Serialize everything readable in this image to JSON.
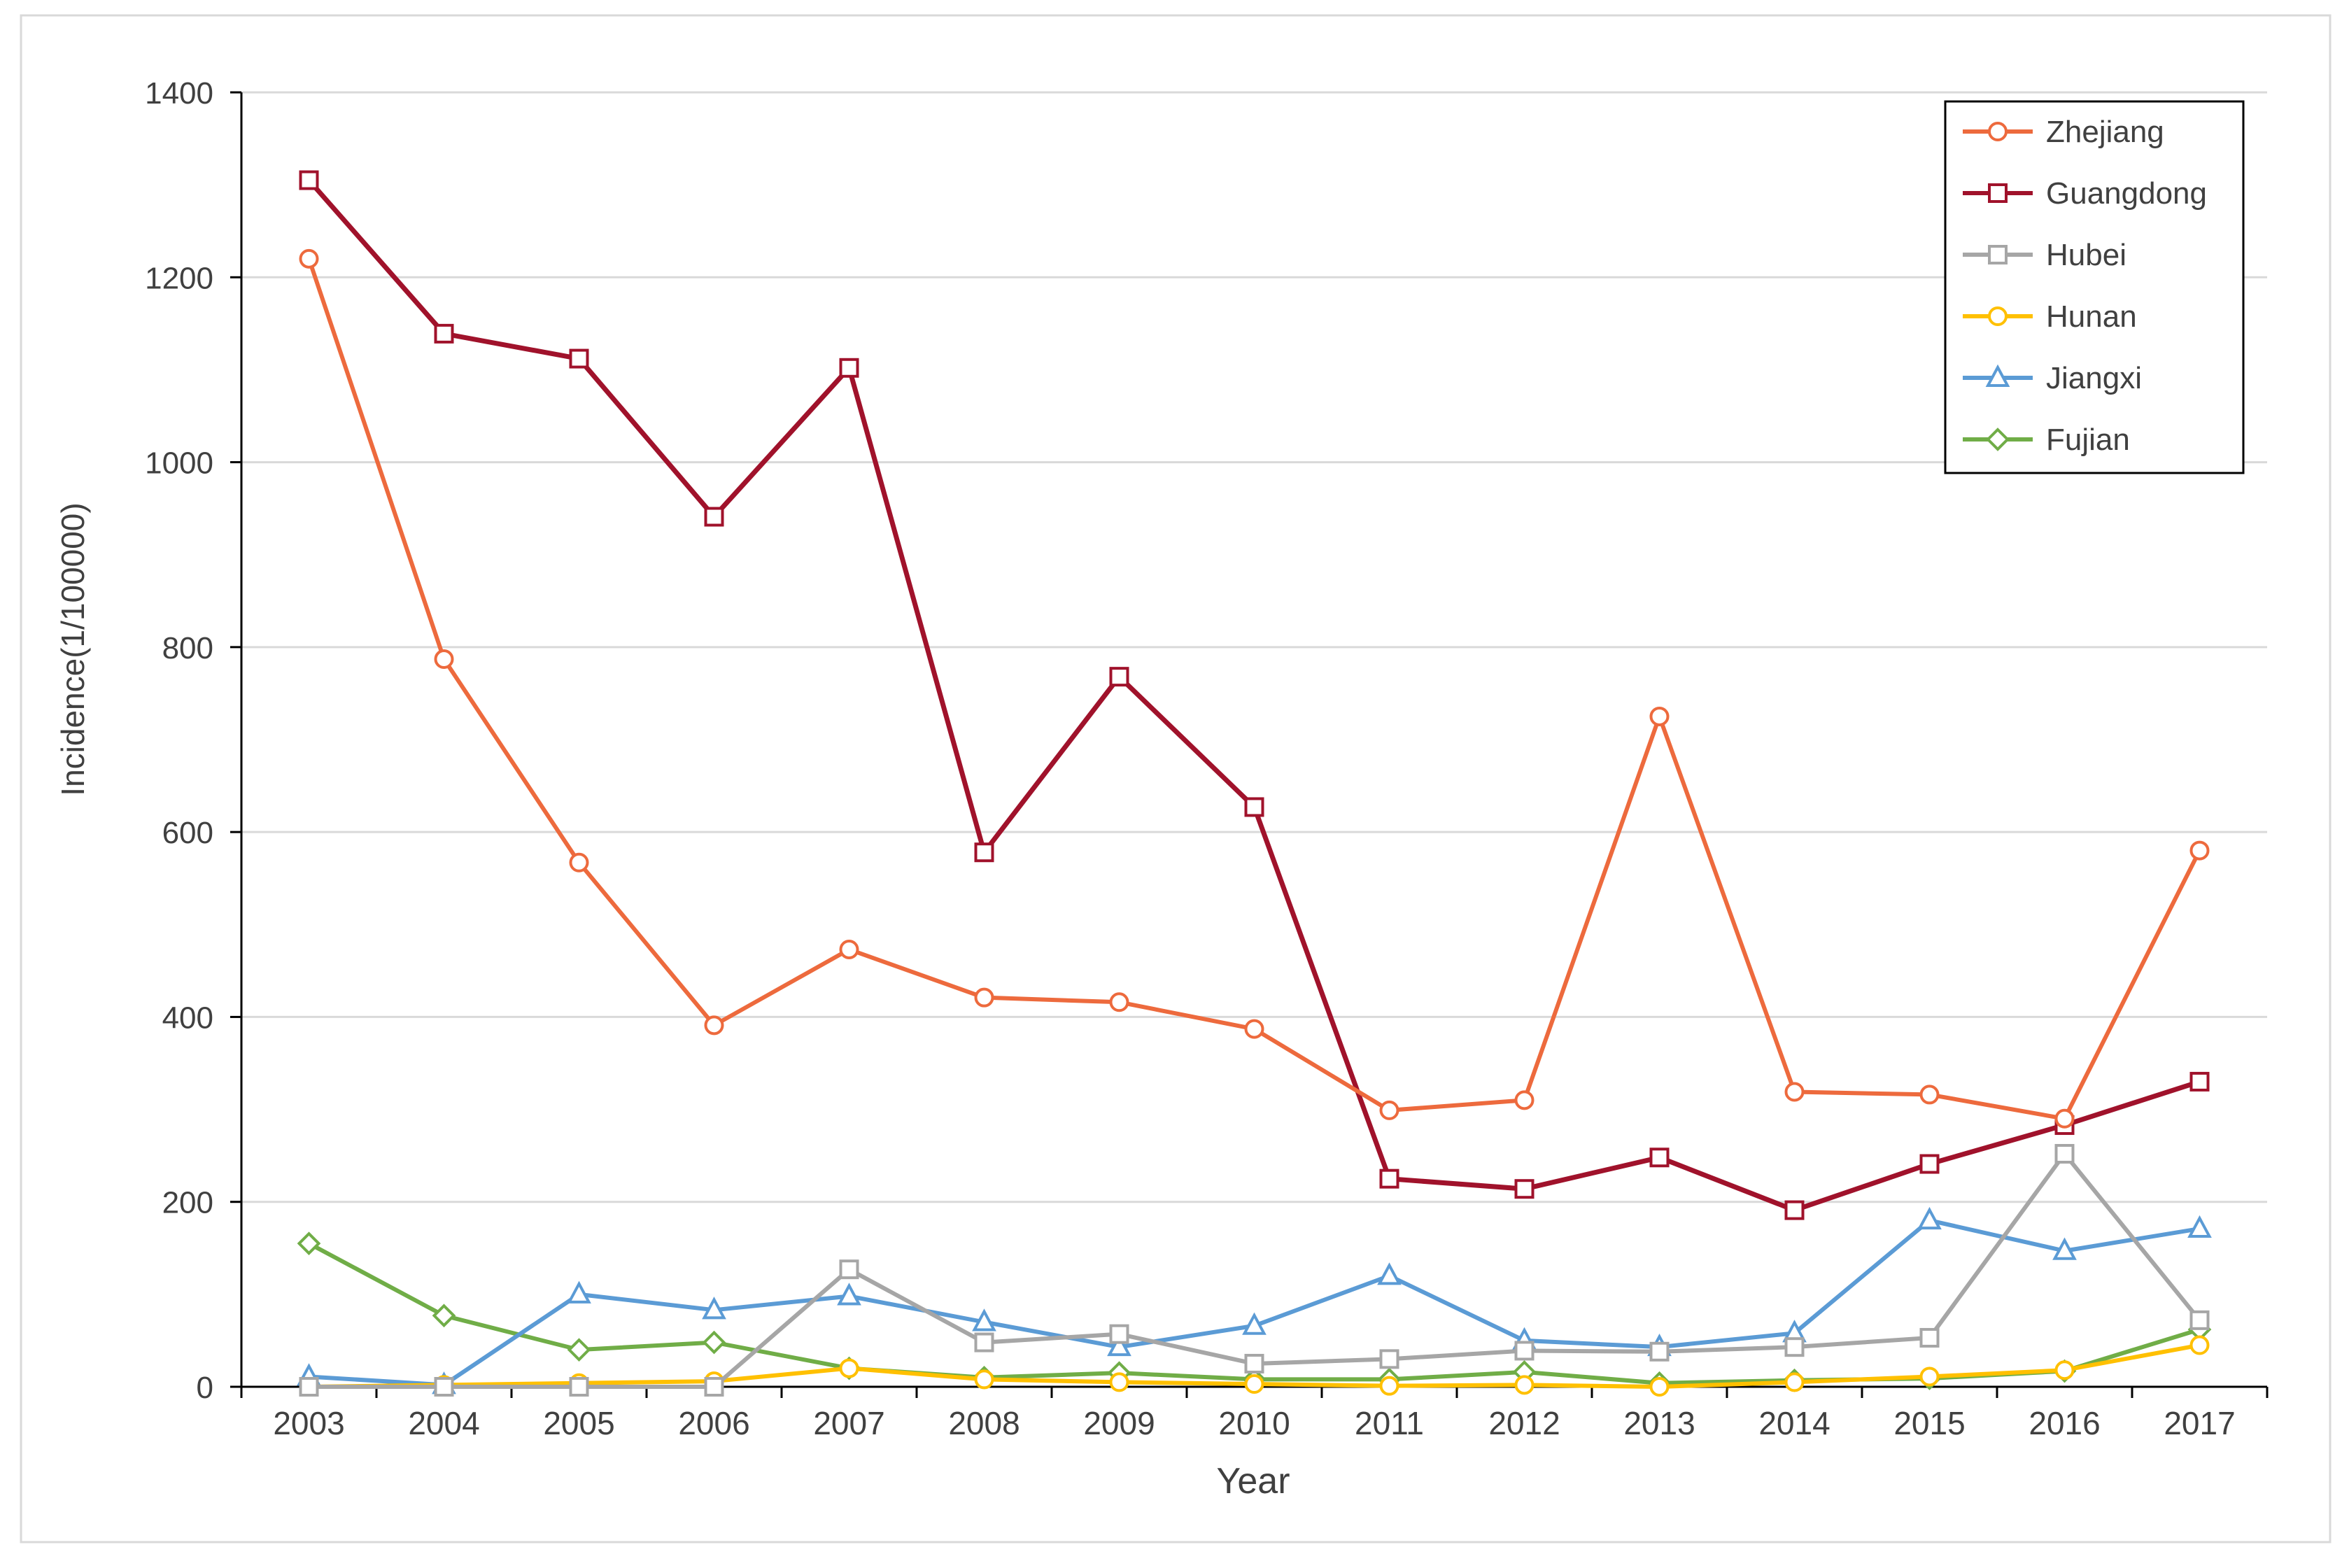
{
  "chart_data": {
    "type": "line",
    "title": "",
    "xlabel": "Year",
    "ylabel": "Incidence(1/100000)",
    "ylim": [
      0,
      1400
    ],
    "yticks": [
      0,
      200,
      400,
      600,
      800,
      1000,
      1200,
      1400
    ],
    "grid": true,
    "legend_position": "top-right",
    "categories": [
      "2003",
      "2004",
      "2005",
      "2006",
      "2007",
      "2008",
      "2009",
      "2010",
      "2011",
      "2012",
      "2013",
      "2014",
      "2015",
      "2016",
      "2017"
    ],
    "series": [
      {
        "name": "Zhejiang",
        "color": "#ED6A3D",
        "marker": "circle",
        "values": [
          1220,
          787,
          567,
          391,
          473,
          421,
          416,
          387,
          299,
          310,
          725,
          319,
          316,
          290,
          580
        ]
      },
      {
        "name": "Guangdong",
        "color": "#A0122B",
        "marker": "square",
        "values": [
          1305,
          1139,
          1112,
          941,
          1102,
          578,
          768,
          627,
          225,
          214,
          248,
          191,
          241,
          283,
          330
        ]
      },
      {
        "name": "Hubei",
        "color": "#A6A6A6",
        "marker": "square",
        "values": [
          0,
          0,
          0,
          0,
          127,
          48,
          57,
          25,
          30,
          39,
          38,
          43,
          53,
          252,
          72
        ]
      },
      {
        "name": "Hunan",
        "color": "#FFC000",
        "marker": "circle",
        "values": [
          0,
          2,
          4,
          6,
          20,
          8,
          5,
          3,
          1,
          2,
          0,
          5,
          11,
          18,
          45
        ]
      },
      {
        "name": "Jiangxi",
        "color": "#5B9BD5",
        "marker": "triangle",
        "values": [
          11,
          2,
          100,
          83,
          98,
          70,
          43,
          66,
          120,
          50,
          43,
          58,
          180,
          147,
          171
        ]
      },
      {
        "name": "Fujian",
        "color": "#70AD47",
        "marker": "diamond",
        "values": [
          155,
          77,
          40,
          48,
          20,
          10,
          15,
          8,
          8,
          16,
          4,
          7,
          9,
          17,
          62
        ]
      }
    ]
  }
}
